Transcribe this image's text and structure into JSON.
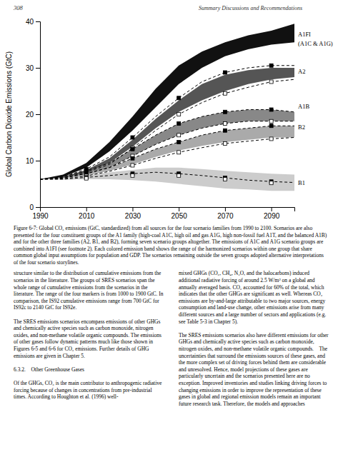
{
  "chart_data": {
    "type": "line",
    "ylabel": "Global Carbon Dioxide Emissions (GtC)",
    "xlim": [
      1990,
      2100
    ],
    "ylim": [
      0,
      40
    ],
    "xticks": [
      1990,
      2010,
      2030,
      2050,
      2070,
      2090
    ],
    "yticks": [
      0,
      10,
      20,
      30,
      40
    ],
    "x": [
      1990,
      2000,
      2010,
      2020,
      2030,
      2040,
      2050,
      2060,
      2070,
      2080,
      2090,
      2100
    ],
    "series": [
      {
        "type": "area",
        "color": "#cccccc",
        "lower": [
          6.0,
          5.9,
          6.0,
          6.0,
          5.8,
          5.5,
          5.0,
          4.5,
          4.0,
          3.8,
          3.5,
          3.5
        ],
        "upper": [
          6.0,
          6.2,
          6.8,
          7.5,
          8.0,
          8.5,
          8.5,
          8.2,
          7.8,
          7.5,
          7.2,
          7.0
        ]
      },
      {
        "type": "area",
        "color": "#aaaaaa",
        "lower": [
          6.0,
          6.2,
          6.8,
          7.8,
          9.2,
          10.8,
          12.2,
          13.2,
          14.0,
          14.5,
          15.0,
          15.0
        ],
        "upper": [
          6.0,
          6.3,
          7.2,
          8.5,
          10.5,
          12.5,
          14.0,
          15.5,
          16.5,
          17.0,
          17.5,
          17.5
        ]
      },
      {
        "type": "area",
        "color": "#888888",
        "lower": [
          6.0,
          6.3,
          7.2,
          8.5,
          11.0,
          13.5,
          15.5,
          17.0,
          18.0,
          18.5,
          18.5,
          18.5
        ],
        "upper": [
          6.0,
          6.5,
          7.8,
          9.5,
          12.5,
          15.5,
          18.0,
          19.5,
          20.5,
          21.0,
          21.0,
          20.5
        ]
      },
      {
        "type": "area",
        "color": "#555555",
        "lower": [
          6.0,
          6.3,
          7.5,
          9.5,
          13.0,
          17.0,
          20.5,
          23.0,
          25.0,
          26.5,
          27.5,
          28.0
        ],
        "upper": [
          6.0,
          6.5,
          8.0,
          10.5,
          14.5,
          19.0,
          23.0,
          26.5,
          28.5,
          29.5,
          30.0,
          30.0
        ]
      },
      {
        "type": "area",
        "color": "#111111",
        "lower": [
          6.0,
          6.5,
          8.5,
          12.0,
          16.5,
          21.5,
          26.5,
          30.0,
          32.5,
          34.0,
          35.0,
          35.5
        ],
        "upper": [
          6.0,
          7.0,
          9.5,
          14.0,
          19.5,
          25.5,
          30.5,
          33.5,
          35.5,
          37.0,
          38.0,
          39.5
        ]
      },
      {
        "type": "line",
        "line_style": "dashed",
        "color": "#000000",
        "values": [
          6.0,
          6.5,
          8.2,
          10.8,
          15.0,
          19.5,
          23.5,
          27.0,
          29.0,
          30.0,
          30.5,
          30.5
        ]
      },
      {
        "type": "line",
        "line_style": "dashed",
        "color": "#000000",
        "values": [
          6.0,
          6.2,
          7.5,
          9.2,
          12.7,
          16.5,
          20.0,
          22.5,
          24.5,
          25.8,
          27.0,
          27.5
        ]
      },
      {
        "type": "line",
        "line_style": "dashed",
        "color": "#000000",
        "values": [
          6.0,
          6.5,
          7.8,
          9.5,
          12.5,
          15.5,
          18.0,
          19.5,
          20.5,
          21.0,
          21.0,
          20.5
        ]
      },
      {
        "type": "line",
        "line_style": "dashed",
        "color": "#000000",
        "values": [
          6.0,
          6.3,
          7.2,
          8.5,
          11.0,
          13.5,
          15.5,
          17.0,
          18.0,
          18.5,
          18.5,
          18.5
        ]
      },
      {
        "type": "line",
        "line_style": "dashed",
        "color": "#000000",
        "values": [
          6.0,
          6.3,
          7.2,
          8.5,
          10.5,
          12.5,
          14.0,
          15.5,
          16.5,
          17.0,
          17.5,
          17.5
        ]
      },
      {
        "type": "line",
        "line_style": "dashed",
        "color": "#000000",
        "values": [
          6.0,
          6.1,
          6.7,
          7.7,
          9.0,
          10.5,
          11.8,
          12.8,
          13.7,
          14.2,
          14.7,
          15.0
        ]
      },
      {
        "type": "line",
        "line_style": "dashed",
        "color": "#000000",
        "values": [
          6.0,
          6.0,
          6.4,
          6.8,
          7.2,
          7.5,
          7.2,
          6.8,
          6.3,
          5.8,
          5.5,
          5.3
        ]
      },
      {
        "type": "scatter",
        "marker": "square",
        "color": "#000000",
        "x": [
          2010,
          2030,
          2050,
          2070,
          2090
        ],
        "values": [
          8.2,
          15.0,
          23.5,
          29.0,
          30.5
        ]
      },
      {
        "type": "scatter",
        "marker": "square",
        "color": "#ffffff",
        "x": [
          2010,
          2030,
          2050,
          2070,
          2090
        ],
        "values": [
          7.5,
          12.7,
          20.0,
          24.5,
          27.0
        ]
      },
      {
        "type": "scatter",
        "marker": "square",
        "color": "#000000",
        "x": [
          2010,
          2030,
          2050,
          2070,
          2090
        ],
        "values": [
          7.8,
          12.5,
          18.0,
          20.5,
          21.0
        ]
      },
      {
        "type": "scatter",
        "marker": "square",
        "color": "#ffffff",
        "x": [
          2010,
          2030,
          2050,
          2070,
          2090
        ],
        "values": [
          7.2,
          11.0,
          15.5,
          18.0,
          18.5
        ]
      },
      {
        "type": "scatter",
        "marker": "square",
        "color": "#000000",
        "x": [
          2010,
          2030,
          2050,
          2070,
          2090
        ],
        "values": [
          7.2,
          10.5,
          14.0,
          16.5,
          17.5
        ]
      },
      {
        "type": "scatter",
        "marker": "square",
        "color": "#ffffff",
        "x": [
          2010,
          2030,
          2050,
          2070,
          2090
        ],
        "values": [
          6.7,
          9.0,
          11.8,
          13.7,
          14.7
        ]
      },
      {
        "type": "scatter",
        "marker": "square",
        "color": "#000000",
        "x": [
          2010,
          2030,
          2050,
          2070,
          2090
        ],
        "values": [
          6.4,
          7.2,
          7.2,
          6.3,
          5.5
        ]
      },
      {
        "type": "scatter",
        "marker": "square",
        "color": "#ffffff",
        "x": [
          2010,
          2030,
          2050,
          2070,
          2090
        ],
        "values": [
          6.2,
          6.8,
          6.8,
          6.0,
          5.2
        ]
      }
    ],
    "annotations": [
      {
        "text": "A1FI",
        "y": 37.0
      },
      {
        "text": "(A1C & A1G)",
        "y": 35.0
      },
      {
        "text": "A2",
        "y": 29.0
      },
      {
        "text": "A1B",
        "y": 21.5
      },
      {
        "text": "B2",
        "y": 17.0
      },
      {
        "text": "B1",
        "y": 5.0
      }
    ]
  },
  "page": {
    "header_left": "308",
    "header_right": "Summary Discussions and Recommendations",
    "caption": "Figure 6-7: Global CO₂ emissions (GtC, standardized) from all sources for the four scenario families from 1990 to 2100. Scenarios are also presented for the four constituent groups of the A1 family (high-coal A1C, high oil and gas A1G, high non-fossil fuel A1T, and the balanced A1B) and for the other three families (A2, B1, and B2), forming seven scenario groups altogether. The emissions of A1C and A1G scenario groups are combined into A1FI (see footnote 2). Each colored emission band shows the range of the harmonized scenarios within one group that share common global input assumptions for population and GDP. The scenarios remaining outside the seven groups adopted alternative interpretations of the four scenario storylines.",
    "body": [
      "structure similar to the distribution of cumulative emissions from the scenarios in the literature. The groups of SRES scenarios span the whole range of cumulative emissions from the scenarios in the literature. The range of the four markers is from 1000 to 1900 GtC. In comparison, the IS92 cumulative emissions range from 700 GtC for IS92c to 2140 GtC for IS92e.\n\nThe SRES emissions scenarios encompass emissions of other GHGs and chemically active species such as carbon monoxide, nitrogen oxides, and non-methane volatile organic compounds. The emissions of other gases follow dynamic patterns much like those shown in Figures 6-5 and 6-6 for CO₂ emissions. Further details of GHG emissions are given in Chapter 5.\n\n6.3.2. Other Greenhouse Gases\n\nOf the GHGs, CO₂ is the main contributor to anthropogenic radiative forcing because of changes in concentrations from pre-industrial times. According to Houghton et al. (1996) well-",
      "mixed GHGs (CO₂, CH₄, N₂O, and the halocarbons) induced additional radiative forcing of around 2.5 W/m² on a global and annually averaged basis. CO₂ accounted for 60% of the total, which indicates that the other GHGs are significant as well. Whereas CO₂ emissions are by-and-large attributable to two major sources, energy consumption and land-use change, other emissions arise from many different sources and a large number of sectors and applications (e.g. see Table 5-3 in Chapter 5).\n\nThe SRES emissions scenarios also have different emissions for other GHGs and chemically active species such as carbon monoxide, nitrogen oxides, and non-methane volatile organic compounds. The uncertainties that surround the emissions sources of these gases, and the more complex set of driving forces behind them are considerable and unresolved. Hence, model projections of these gases are particularly uncertain and the scenarios presented here are no exception. Improved inventories and studies linking driving forces to changing emissions in order to improve the representation of these gases in global and regional emission models remain an important future research task. Therefore, the models and approaches"
    ]
  }
}
